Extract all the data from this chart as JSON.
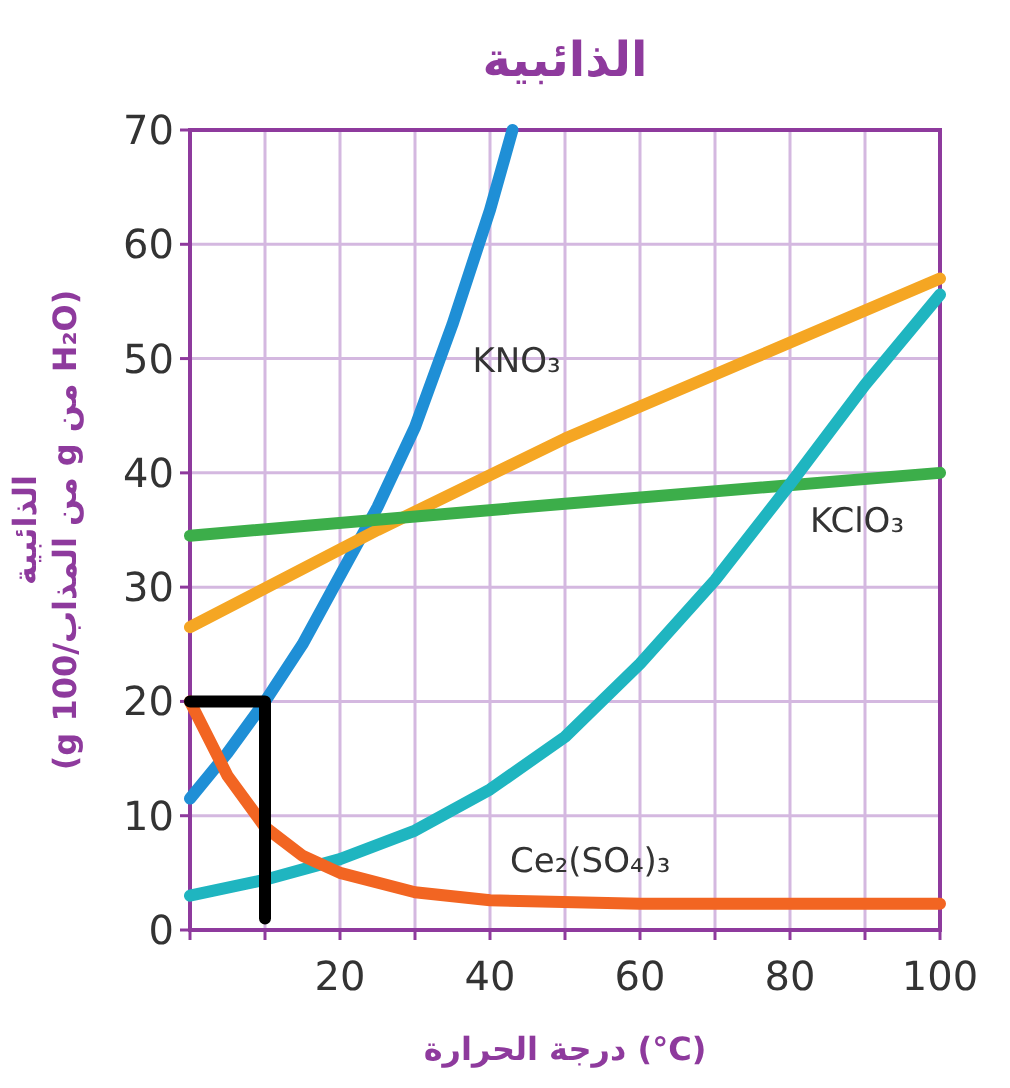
{
  "chart_data": {
    "type": "line",
    "title": "الذائبية",
    "xlabel": "درجة الحرارة (°C)",
    "ylabel": "الذائبية\n(g من المذاب/100 g من H₂O)",
    "xlim": [
      0,
      100
    ],
    "ylim": [
      0,
      70
    ],
    "xticks": [
      {
        "value": 0,
        "label": null
      },
      {
        "value": 10,
        "label": null
      },
      20,
      {
        "value": 30,
        "label": null
      },
      40,
      {
        "value": 50,
        "label": null
      },
      60,
      {
        "value": 70,
        "label": null
      },
      80,
      {
        "value": 90,
        "label": null
      },
      100
    ],
    "yticks": [
      0,
      10,
      20,
      30,
      40,
      50,
      60,
      70
    ],
    "grid": true,
    "series": [
      {
        "name": "KNO₃",
        "color": "#1f8fd6",
        "x": [
          0,
          5,
          10,
          15,
          20,
          25,
          30,
          35,
          40,
          43
        ],
        "values": [
          11.5,
          15.5,
          20,
          25,
          31,
          37,
          44,
          53,
          63,
          70
        ]
      },
      {
        "color": "#f5a623",
        "x": [
          0,
          25,
          50,
          75,
          100
        ],
        "values": [
          26.5,
          35,
          43,
          50,
          57
        ]
      },
      {
        "color": "#3cae4a",
        "x": [
          0,
          50,
          100
        ],
        "values": [
          34.5,
          37.3,
          40
        ]
      },
      {
        "name": "KClO₃",
        "color": "#1fb5c0",
        "x": [
          0,
          10,
          20,
          30,
          40,
          50,
          60,
          70,
          80,
          90,
          100
        ],
        "values": [
          3,
          4.4,
          6.2,
          8.7,
          12.3,
          16.9,
          23.3,
          30.6,
          39,
          47.7,
          55.6
        ]
      },
      {
        "name": "Ce₂(SO₄)₃",
        "color": "#f26522",
        "x": [
          0,
          5,
          10,
          15,
          20,
          30,
          40,
          60,
          100
        ],
        "values": [
          20,
          13.5,
          9,
          6.5,
          5,
          3.3,
          2.6,
          2.3,
          2.3
        ]
      },
      {
        "color": "#000000",
        "x": [
          0,
          10,
          10
        ],
        "values": [
          20,
          20,
          1
        ]
      }
    ]
  }
}
